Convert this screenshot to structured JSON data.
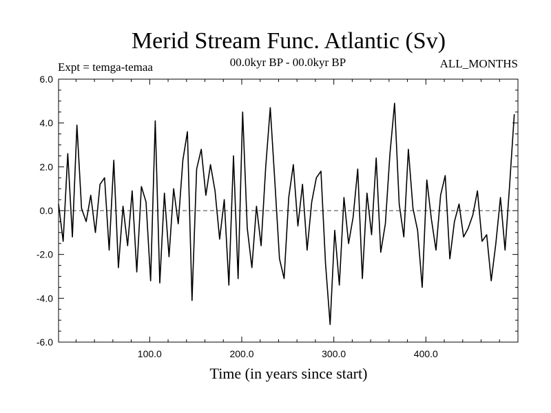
{
  "chart_data": {
    "type": "line",
    "title": "Merid Stream Func. Atlantic (Sv)",
    "subtitle_left": "Expt = temga-temaa",
    "subtitle_center": "00.0kyr BP - 00.0kyr BP",
    "subtitle_right": "ALL_MONTHS",
    "xlabel": "Time (in years since start)",
    "ylabel": "",
    "xlim": [
      1,
      500
    ],
    "ylim": [
      -6,
      6
    ],
    "x_ticks": [
      100,
      200,
      300,
      400
    ],
    "x_tick_labels": [
      "100.0",
      "200.0",
      "300.0",
      "400.0"
    ],
    "y_ticks": [
      -6,
      -4,
      -2,
      0,
      2,
      4,
      6
    ],
    "y_tick_labels": [
      "-6.0",
      "-4.0",
      "-2.0",
      "0.0",
      "2.0",
      "4.0",
      "6.0"
    ],
    "zero_line": "dashed",
    "series": [
      {
        "name": "Merid Stream Func. Atlantic",
        "x_start": 1,
        "x_step": 5,
        "values": [
          0.3,
          -1.4,
          2.6,
          -1.2,
          3.9,
          0.1,
          -0.5,
          0.7,
          -1.0,
          1.2,
          1.5,
          -1.8,
          2.3,
          -2.6,
          0.2,
          -1.6,
          0.9,
          -2.8,
          1.1,
          0.4,
          -3.2,
          4.1,
          -3.3,
          0.8,
          -2.1,
          1.0,
          -0.6,
          2.3,
          3.6,
          -4.1,
          1.9,
          2.8,
          0.7,
          2.1,
          0.9,
          -1.3,
          0.5,
          -3.4,
          2.5,
          -3.1,
          4.5,
          -0.8,
          -2.6,
          0.2,
          -1.6,
          2.0,
          4.7,
          1.3,
          -2.2,
          -3.1,
          0.6,
          2.1,
          -0.7,
          1.2,
          -1.8,
          0.4,
          1.5,
          1.8,
          -2.4,
          -5.2,
          -0.9,
          -3.4,
          0.6,
          -1.5,
          -0.3,
          1.9,
          -3.1,
          0.8,
          -1.1,
          2.4,
          -1.9,
          -0.6,
          2.6,
          4.9,
          0.3,
          -1.2,
          2.8,
          0.1,
          -0.9,
          -3.5,
          1.4,
          -0.4,
          -1.8,
          0.7,
          1.6,
          -2.2,
          -0.5,
          0.3,
          -1.2,
          -0.8,
          -0.2,
          0.9,
          -1.4,
          -1.1,
          -3.2,
          -1.5,
          0.6,
          -1.8,
          1.2,
          4.4
        ]
      }
    ]
  }
}
